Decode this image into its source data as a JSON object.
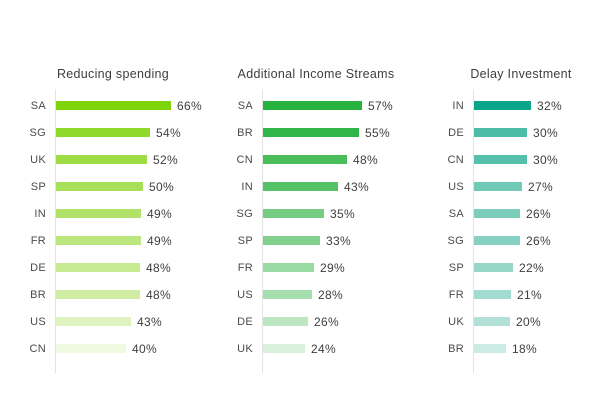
{
  "page": {
    "background": "#ffffff"
  },
  "style": {
    "title_color": "#3e3e3e",
    "country_label_color": "#4a4a4a",
    "value_label_color": "#3e3e3e",
    "axis_line_color": "#e3e3e3"
  },
  "chart_data": [
    {
      "type": "bar",
      "orientation": "horizontal",
      "title": "Reducing spending",
      "unit": "%",
      "categories": [
        "SA",
        "SG",
        "UK",
        "SP",
        "IN",
        "FR",
        "DE",
        "BR",
        "US",
        "CN"
      ],
      "values": [
        66,
        54,
        52,
        50,
        49,
        49,
        48,
        48,
        43,
        40
      ],
      "bar_colors": [
        "#7FD30A",
        "#90D82B",
        "#9DDC45",
        "#A8E059",
        "#B1E36B",
        "#BCE77F",
        "#C6EA91",
        "#D0EDA3",
        "#DEF3C0",
        "#EFF9E0"
      ],
      "base_color": "#7FD30A",
      "xlim": [
        0,
        70
      ],
      "grid": false,
      "legend": false,
      "value_labels_shown": true
    },
    {
      "type": "bar",
      "orientation": "horizontal",
      "title": "Additional Income Streams",
      "unit": "%",
      "categories": [
        "SA",
        "BR",
        "CN",
        "IN",
        "SG",
        "SP",
        "FR",
        "US",
        "DE",
        "UK"
      ],
      "values": [
        57,
        55,
        48,
        43,
        35,
        33,
        29,
        28,
        26,
        24
      ],
      "bar_colors": [
        "#27B23E",
        "#31B549",
        "#49BE5B",
        "#56C268",
        "#74CD82",
        "#81D18D",
        "#9ADAA3",
        "#A6DEAD",
        "#BDE7C2",
        "#D9F1DB"
      ],
      "base_color": "#27B23E",
      "xlim": [
        0,
        70
      ],
      "grid": false,
      "legend": false,
      "value_labels_shown": true
    },
    {
      "type": "bar",
      "orientation": "horizontal",
      "title": "Delay Investment",
      "unit": "%",
      "categories": [
        "IN",
        "DE",
        "CN",
        "US",
        "SA",
        "SG",
        "SP",
        "FR",
        "UK",
        "BR"
      ],
      "values": [
        32,
        30,
        30,
        27,
        26,
        26,
        22,
        21,
        20,
        18
      ],
      "bar_colors": [
        "#0BA689",
        "#4CBCA6",
        "#57C0AB",
        "#71C9B7",
        "#7DCDBD",
        "#86D1C1",
        "#97D7C9",
        "#A2DBCF",
        "#B3E1D7",
        "#CBEBE4"
      ],
      "base_color": "#0BA689",
      "xlim": [
        0,
        40
      ],
      "grid": false,
      "legend": false,
      "value_labels_shown": true
    }
  ]
}
